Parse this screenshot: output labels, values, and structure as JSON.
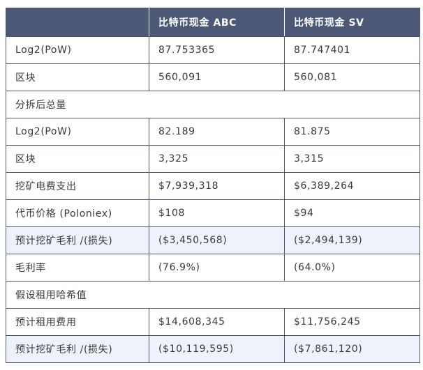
{
  "table": {
    "headers": [
      "",
      "比特币现金 ABC",
      "比特币现金 SV"
    ],
    "rows": [
      {
        "label": "Log2(PoW)",
        "abc": "87.753365",
        "sv": "87.747401",
        "section": false,
        "highlight": false
      },
      {
        "label": "区块",
        "abc": "560,091",
        "sv": "560,081",
        "section": false,
        "highlight": false
      },
      {
        "label": "分拆后总量",
        "abc": "",
        "sv": "",
        "section": true,
        "highlight": false
      },
      {
        "label": "Log2(PoW)",
        "abc": "82.189",
        "sv": "81.875",
        "section": false,
        "highlight": false
      },
      {
        "label": "区块",
        "abc": "3,325",
        "sv": "3,315",
        "section": false,
        "highlight": false
      },
      {
        "label": "挖矿电费支出",
        "abc": "$7,939,318",
        "sv": "$6,389,264",
        "section": false,
        "highlight": false
      },
      {
        "label": "代币价格 (Poloniex)",
        "abc": "$108",
        "sv": "$94",
        "section": false,
        "highlight": false
      },
      {
        "label": "预计挖矿毛利 /(损失)",
        "abc": "($3,450,568)",
        "sv": "($2,494,139)",
        "section": false,
        "highlight": true
      },
      {
        "label": "毛利率",
        "abc": "(76.9%)",
        "sv": "(64.0%)",
        "section": false,
        "highlight": false
      },
      {
        "label": "假设租用哈希值",
        "abc": "",
        "sv": "",
        "section": true,
        "highlight": false
      },
      {
        "label": "预计租用费用",
        "abc": "$14,608,345",
        "sv": "$11,756,245",
        "section": false,
        "highlight": false
      },
      {
        "label": "预计挖矿毛利 /(损失)",
        "abc": "($10,119,595)",
        "sv": "($7,861,120)",
        "section": false,
        "highlight": true
      }
    ]
  },
  "colors": {
    "header_bg": "#4c5876",
    "header_text": "#ffffff",
    "border": "#4c5876",
    "highlight_bg": "#eef2fb"
  }
}
